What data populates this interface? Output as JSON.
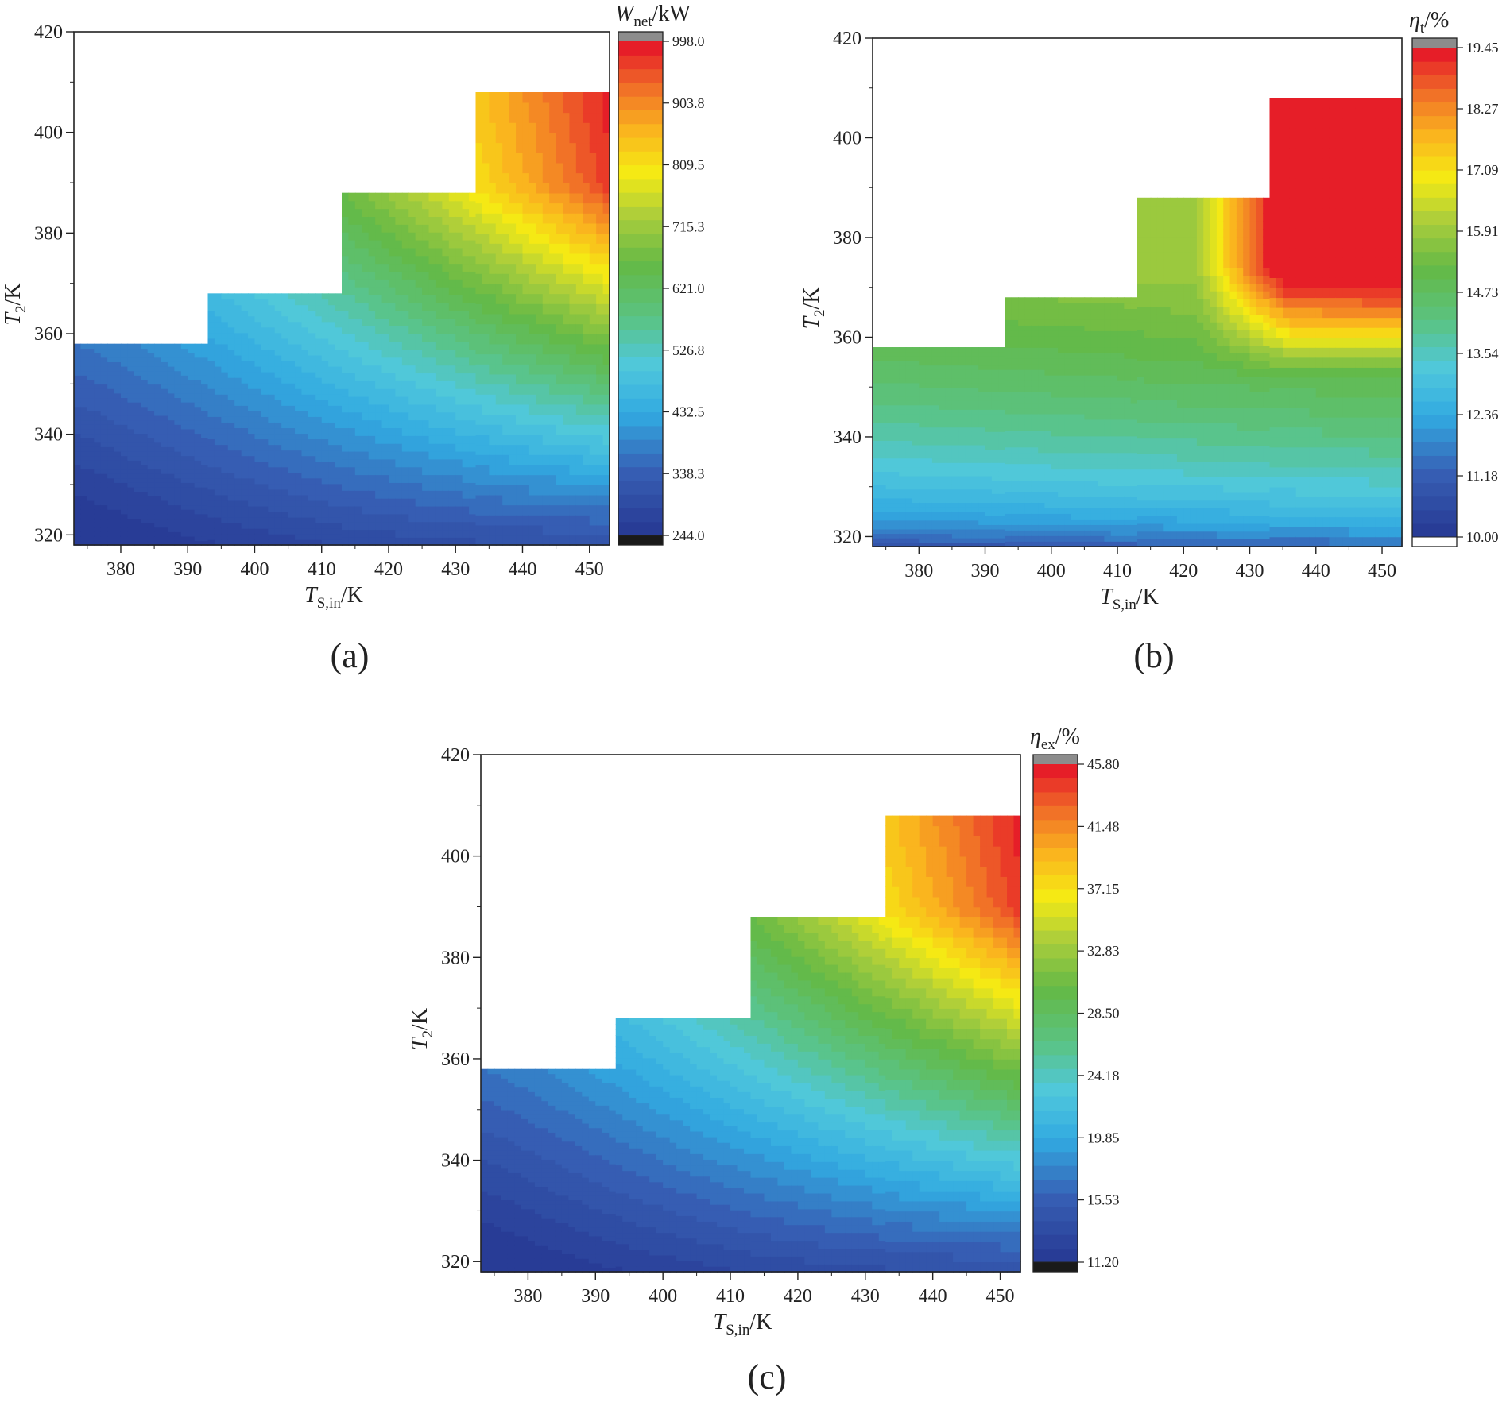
{
  "panels": [
    {
      "label": "(a)",
      "chart_data": {
        "type": "heatmap",
        "xlabel_main": "T",
        "xlabel_sub": "S,in",
        "xlabel_unit": "/K",
        "ylabel_main": "T",
        "ylabel_sub": "2",
        "ylabel_unit": "/K",
        "xticks": [
          380,
          390,
          400,
          410,
          420,
          430,
          440,
          450
        ],
        "yticks": [
          320,
          340,
          360,
          380,
          400,
          420
        ],
        "xlim": [
          373,
          453
        ],
        "ylim": [
          318,
          420
        ],
        "domain_steps": [
          [
            373,
            393,
            358
          ],
          [
            393,
            413,
            368
          ],
          [
            413,
            433,
            388
          ],
          [
            433,
            453,
            408
          ]
        ],
        "colorbar": {
          "title_main": "W",
          "title_sub": "net",
          "title_unit": "/kW",
          "ticks": [
            "998.0",
            "903.8",
            "809.5",
            "715.3",
            "621.0",
            "526.8",
            "432.5",
            "338.3",
            "244.0"
          ],
          "min": 244.0,
          "max": 998.0,
          "top_color": "#8c8c8c",
          "bottom_color": "#1a1a1a"
        },
        "field": "power"
      }
    },
    {
      "label": "(b)",
      "chart_data": {
        "type": "heatmap",
        "xlabel_main": "T",
        "xlabel_sub": "S,in",
        "xlabel_unit": "/K",
        "ylabel_main": "T",
        "ylabel_sub": "2",
        "ylabel_unit": "/K",
        "xticks": [
          380,
          390,
          400,
          410,
          420,
          430,
          440,
          450
        ],
        "yticks": [
          320,
          340,
          360,
          380,
          400,
          420
        ],
        "xlim": [
          373,
          453
        ],
        "ylim": [
          318,
          420
        ],
        "domain_steps": [
          [
            373,
            393,
            358
          ],
          [
            393,
            413,
            368
          ],
          [
            413,
            433,
            388
          ],
          [
            433,
            453,
            408
          ]
        ],
        "colorbar": {
          "title_main": "η",
          "title_sub": "t",
          "title_unit": "/%",
          "ticks": [
            "19.45",
            "18.27",
            "17.09",
            "15.91",
            "14.73",
            "13.54",
            "12.36",
            "11.18",
            "10.00"
          ],
          "min": 10.0,
          "max": 19.45,
          "top_color": "#8c8c8c",
          "bottom_color": "#ffffff"
        },
        "field": "thermal"
      }
    },
    {
      "label": "(c)",
      "chart_data": {
        "type": "heatmap",
        "xlabel_main": "T",
        "xlabel_sub": "S,in",
        "xlabel_unit": "/K",
        "ylabel_main": "T",
        "ylabel_sub": "2",
        "ylabel_unit": "/K",
        "xticks": [
          380,
          390,
          400,
          410,
          420,
          430,
          440,
          450
        ],
        "yticks": [
          320,
          340,
          360,
          380,
          400,
          420
        ],
        "xlim": [
          373,
          453
        ],
        "ylim": [
          318,
          420
        ],
        "domain_steps": [
          [
            373,
            393,
            358
          ],
          [
            393,
            413,
            368
          ],
          [
            413,
            433,
            388
          ],
          [
            433,
            453,
            408
          ]
        ],
        "colorbar": {
          "title_main": "η",
          "title_sub": "ex",
          "title_unit": "/%",
          "ticks": [
            "45.80",
            "41.48",
            "37.15",
            "32.83",
            "28.50",
            "24.18",
            "19.85",
            "15.53",
            "11.20"
          ],
          "min": 11.2,
          "max": 45.8,
          "top_color": "#8c8c8c",
          "bottom_color": "#1a1a1a"
        },
        "field": "power"
      }
    }
  ]
}
